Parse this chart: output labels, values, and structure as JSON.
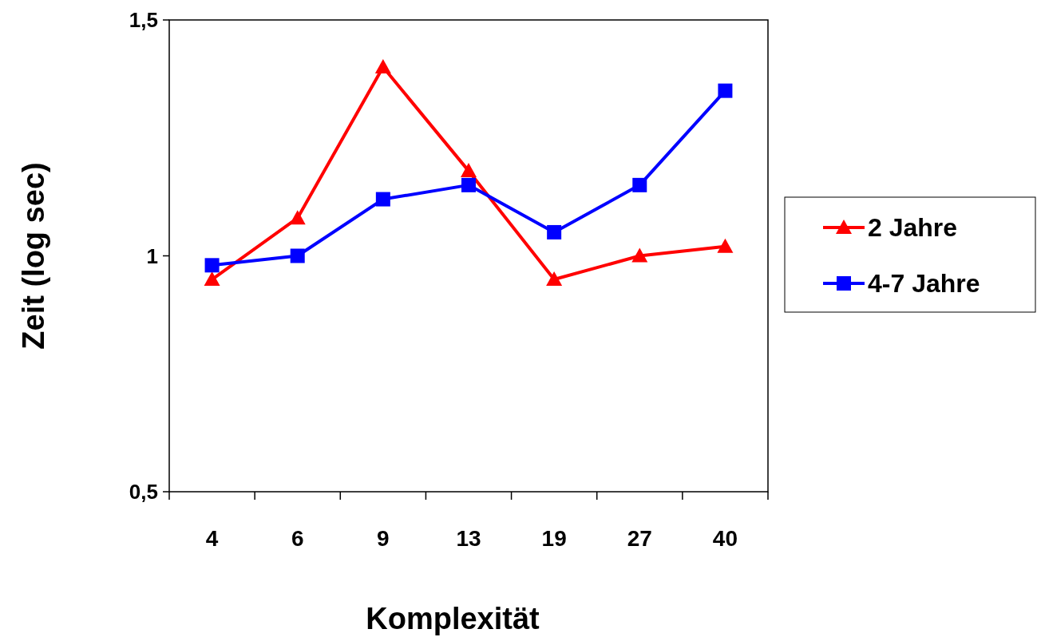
{
  "chart_data": {
    "type": "line",
    "xlabel": "Komplexität",
    "ylabel": "Zeit (log sec)",
    "categories": [
      "4",
      "6",
      "9",
      "13",
      "19",
      "27",
      "40"
    ],
    "series": [
      {
        "name": "2 Jahre",
        "color": "#ff0000",
        "marker": "triangle",
        "values": [
          0.95,
          1.08,
          1.4,
          1.18,
          0.95,
          1.0,
          1.02
        ]
      },
      {
        "name": "4-7 Jahre",
        "color": "#0000ff",
        "marker": "square",
        "values": [
          0.98,
          1.0,
          1.12,
          1.15,
          1.05,
          1.15,
          1.35
        ]
      }
    ],
    "ylim": [
      0.5,
      1.5
    ],
    "yticks": [
      {
        "value": 0.5,
        "label": "0,5"
      },
      {
        "value": 1,
        "label": "1"
      },
      {
        "value": 1.5,
        "label": "1,5"
      }
    ],
    "grid": false,
    "legend": "right",
    "line_style": "solid"
  }
}
